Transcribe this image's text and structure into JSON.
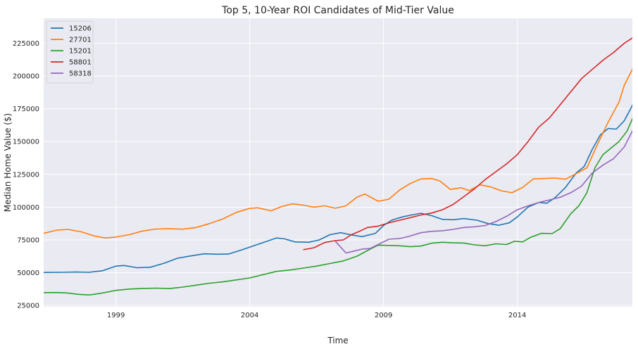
{
  "chart_data": {
    "type": "line",
    "title": "Top 5, 10-Year ROI Candidates of Mid-Tier Value",
    "xlabel": "Time",
    "ylabel": "Median Home Value ($)",
    "xlim": [
      1996.3,
      2018.3
    ],
    "ylim": [
      24000,
      244000
    ],
    "x_ticks": [
      1999,
      2004,
      2009,
      2014
    ],
    "y_ticks": [
      25000,
      50000,
      75000,
      100000,
      125000,
      150000,
      175000,
      200000,
      225000
    ],
    "grid": true,
    "legend_position": "top-left",
    "background_color": "#eaeaf2",
    "series": [
      {
        "name": "15206",
        "color": "#1f77b4",
        "points": [
          [
            1996.3,
            50200
          ],
          [
            1997.0,
            50300
          ],
          [
            1997.5,
            50500
          ],
          [
            1998.0,
            50300
          ],
          [
            1998.5,
            51500
          ],
          [
            1999.0,
            55000
          ],
          [
            1999.3,
            55500
          ],
          [
            1999.8,
            53800
          ],
          [
            2000.3,
            54200
          ],
          [
            2000.8,
            57200
          ],
          [
            2001.3,
            61000
          ],
          [
            2001.8,
            62800
          ],
          [
            2002.3,
            64400
          ],
          [
            2002.8,
            64100
          ],
          [
            2003.2,
            64200
          ],
          [
            2003.6,
            66700
          ],
          [
            2004.0,
            69500
          ],
          [
            2004.5,
            73000
          ],
          [
            2005.0,
            76500
          ],
          [
            2005.3,
            75800
          ],
          [
            2005.7,
            73500
          ],
          [
            2006.2,
            73200
          ],
          [
            2006.6,
            75000
          ],
          [
            2007.0,
            79000
          ],
          [
            2007.4,
            80500
          ],
          [
            2007.8,
            78800
          ],
          [
            2008.2,
            77500
          ],
          [
            2008.7,
            80000
          ],
          [
            2009.0,
            86000
          ],
          [
            2009.3,
            90000
          ],
          [
            2009.7,
            92500
          ],
          [
            2010.0,
            93800
          ],
          [
            2010.4,
            95300
          ],
          [
            2010.8,
            93500
          ],
          [
            2011.2,
            90700
          ],
          [
            2011.6,
            90400
          ],
          [
            2012.0,
            91300
          ],
          [
            2012.5,
            90000
          ],
          [
            2012.9,
            87500
          ],
          [
            2013.3,
            86200
          ],
          [
            2013.7,
            88000
          ],
          [
            2014.0,
            92500
          ],
          [
            2014.4,
            100000
          ],
          [
            2014.8,
            103600
          ],
          [
            2015.1,
            103000
          ],
          [
            2015.4,
            107000
          ],
          [
            2015.8,
            115000
          ],
          [
            2016.2,
            126000
          ],
          [
            2016.5,
            131000
          ],
          [
            2016.8,
            144000
          ],
          [
            2017.1,
            155000
          ],
          [
            2017.4,
            160000
          ],
          [
            2017.7,
            159500
          ],
          [
            2018.0,
            166000
          ],
          [
            2018.3,
            177500
          ],
          [
            2018.5,
            190500
          ]
        ]
      },
      {
        "name": "27701",
        "color": "#ff7f0e",
        "points": [
          [
            1996.3,
            80000
          ],
          [
            1996.8,
            82500
          ],
          [
            1997.2,
            83000
          ],
          [
            1997.7,
            81200
          ],
          [
            1998.2,
            78000
          ],
          [
            1998.6,
            76500
          ],
          [
            1999.0,
            77200
          ],
          [
            1999.5,
            79000
          ],
          [
            2000.0,
            81800
          ],
          [
            2000.5,
            83300
          ],
          [
            2001.0,
            83500
          ],
          [
            2001.5,
            83200
          ],
          [
            2002.0,
            84500
          ],
          [
            2002.5,
            87500
          ],
          [
            2003.0,
            91000
          ],
          [
            2003.5,
            96000
          ],
          [
            2004.0,
            99000
          ],
          [
            2004.3,
            99500
          ],
          [
            2004.8,
            97200
          ],
          [
            2005.2,
            100500
          ],
          [
            2005.6,
            102500
          ],
          [
            2006.0,
            101500
          ],
          [
            2006.4,
            100000
          ],
          [
            2006.8,
            101000
          ],
          [
            2007.2,
            99200
          ],
          [
            2007.6,
            101000
          ],
          [
            2008.0,
            107500
          ],
          [
            2008.3,
            110000
          ],
          [
            2008.8,
            104500
          ],
          [
            2009.2,
            106000
          ],
          [
            2009.6,
            113000
          ],
          [
            2010.0,
            118000
          ],
          [
            2010.4,
            121500
          ],
          [
            2010.8,
            121800
          ],
          [
            2011.1,
            120000
          ],
          [
            2011.5,
            113500
          ],
          [
            2011.9,
            114800
          ],
          [
            2012.2,
            112600
          ],
          [
            2012.6,
            117000
          ],
          [
            2013.0,
            115500
          ],
          [
            2013.4,
            112500
          ],
          [
            2013.8,
            111000
          ],
          [
            2014.2,
            115000
          ],
          [
            2014.6,
            121500
          ],
          [
            2015.0,
            121800
          ],
          [
            2015.4,
            122200
          ],
          [
            2015.8,
            121300
          ],
          [
            2016.2,
            125500
          ],
          [
            2016.6,
            130000
          ],
          [
            2017.0,
            148000
          ],
          [
            2017.4,
            165000
          ],
          [
            2017.8,
            180000
          ],
          [
            2018.0,
            193000
          ],
          [
            2018.3,
            205000
          ],
          [
            2018.5,
            214000
          ],
          [
            2018.7,
            228000
          ]
        ]
      },
      {
        "name": "15201",
        "color": "#2ca02c",
        "points": [
          [
            1996.3,
            34800
          ],
          [
            1996.8,
            34900
          ],
          [
            1997.2,
            34500
          ],
          [
            1997.6,
            33500
          ],
          [
            1998.0,
            33000
          ],
          [
            1998.5,
            34500
          ],
          [
            1999.0,
            36500
          ],
          [
            1999.5,
            37500
          ],
          [
            2000.0,
            38000
          ],
          [
            2000.5,
            38200
          ],
          [
            2001.0,
            37900
          ],
          [
            2001.5,
            39000
          ],
          [
            2002.0,
            40500
          ],
          [
            2002.5,
            42000
          ],
          [
            2003.0,
            43000
          ],
          [
            2003.5,
            44500
          ],
          [
            2004.0,
            46000
          ],
          [
            2004.5,
            48500
          ],
          [
            2005.0,
            51000
          ],
          [
            2005.5,
            52000
          ],
          [
            2006.0,
            53500
          ],
          [
            2006.5,
            55000
          ],
          [
            2007.0,
            57000
          ],
          [
            2007.5,
            59000
          ],
          [
            2008.0,
            62500
          ],
          [
            2008.5,
            68000
          ],
          [
            2008.8,
            71000
          ],
          [
            2009.2,
            70800
          ],
          [
            2009.6,
            70500
          ],
          [
            2010.0,
            69800
          ],
          [
            2010.4,
            70300
          ],
          [
            2010.8,
            72500
          ],
          [
            2011.2,
            73200
          ],
          [
            2011.6,
            72800
          ],
          [
            2012.0,
            72600
          ],
          [
            2012.4,
            71200
          ],
          [
            2012.8,
            70500
          ],
          [
            2013.2,
            72000
          ],
          [
            2013.6,
            71500
          ],
          [
            2013.9,
            74000
          ],
          [
            2014.2,
            73500
          ],
          [
            2014.5,
            77000
          ],
          [
            2014.9,
            80000
          ],
          [
            2015.3,
            79800
          ],
          [
            2015.6,
            83500
          ],
          [
            2016.0,
            95000
          ],
          [
            2016.3,
            101000
          ],
          [
            2016.6,
            111000
          ],
          [
            2016.9,
            130000
          ],
          [
            2017.2,
            140000
          ],
          [
            2017.5,
            145000
          ],
          [
            2017.8,
            150000
          ],
          [
            2018.1,
            158000
          ],
          [
            2018.4,
            172000
          ],
          [
            2018.7,
            185000
          ]
        ]
      },
      {
        "name": "58801",
        "color": "#d62728",
        "points": [
          [
            2006.0,
            67500
          ],
          [
            2006.4,
            69000
          ],
          [
            2006.8,
            73000
          ],
          [
            2007.2,
            74500
          ],
          [
            2007.5,
            75000
          ],
          [
            2007.8,
            79000
          ],
          [
            2008.1,
            81500
          ],
          [
            2008.4,
            84500
          ],
          [
            2008.8,
            85500
          ],
          [
            2009.2,
            88000
          ],
          [
            2009.6,
            90000
          ],
          [
            2010.0,
            92000
          ],
          [
            2010.4,
            94000
          ],
          [
            2010.8,
            95500
          ],
          [
            2011.2,
            98000
          ],
          [
            2011.6,
            102000
          ],
          [
            2012.0,
            108000
          ],
          [
            2012.4,
            114000
          ],
          [
            2012.8,
            121000
          ],
          [
            2013.2,
            127000
          ],
          [
            2013.6,
            133000
          ],
          [
            2014.0,
            140000
          ],
          [
            2014.4,
            150000
          ],
          [
            2014.8,
            161000
          ],
          [
            2015.2,
            168000
          ],
          [
            2015.6,
            178000
          ],
          [
            2016.0,
            188000
          ],
          [
            2016.4,
            198000
          ],
          [
            2016.8,
            205000
          ],
          [
            2017.2,
            212000
          ],
          [
            2017.6,
            218000
          ],
          [
            2018.0,
            225000
          ],
          [
            2018.3,
            229000
          ],
          [
            2018.6,
            232000
          ],
          [
            2018.9,
            229000
          ],
          [
            2019.2,
            226000
          ]
        ]
      },
      {
        "name": "58318",
        "color": "#9467bd",
        "points": [
          [
            2007.2,
            74000
          ],
          [
            2007.6,
            65000
          ],
          [
            2007.9,
            66500
          ],
          [
            2008.2,
            68000
          ],
          [
            2008.5,
            68500
          ],
          [
            2008.8,
            71500
          ],
          [
            2009.2,
            75500
          ],
          [
            2009.6,
            76000
          ],
          [
            2010.0,
            78000
          ],
          [
            2010.4,
            80500
          ],
          [
            2010.8,
            81500
          ],
          [
            2011.2,
            82000
          ],
          [
            2011.6,
            83000
          ],
          [
            2012.0,
            84500
          ],
          [
            2012.4,
            85000
          ],
          [
            2012.8,
            86000
          ],
          [
            2013.2,
            89000
          ],
          [
            2013.6,
            93000
          ],
          [
            2014.0,
            98000
          ],
          [
            2014.4,
            101000
          ],
          [
            2014.8,
            103500
          ],
          [
            2015.2,
            105500
          ],
          [
            2015.6,
            107500
          ],
          [
            2016.0,
            111000
          ],
          [
            2016.4,
            116000
          ],
          [
            2016.8,
            126000
          ],
          [
            2017.2,
            132000
          ],
          [
            2017.6,
            137000
          ],
          [
            2018.0,
            146000
          ],
          [
            2018.3,
            158000
          ],
          [
            2018.6,
            160500
          ],
          [
            2018.9,
            162000
          ],
          [
            2019.2,
            167500
          ]
        ]
      }
    ]
  }
}
